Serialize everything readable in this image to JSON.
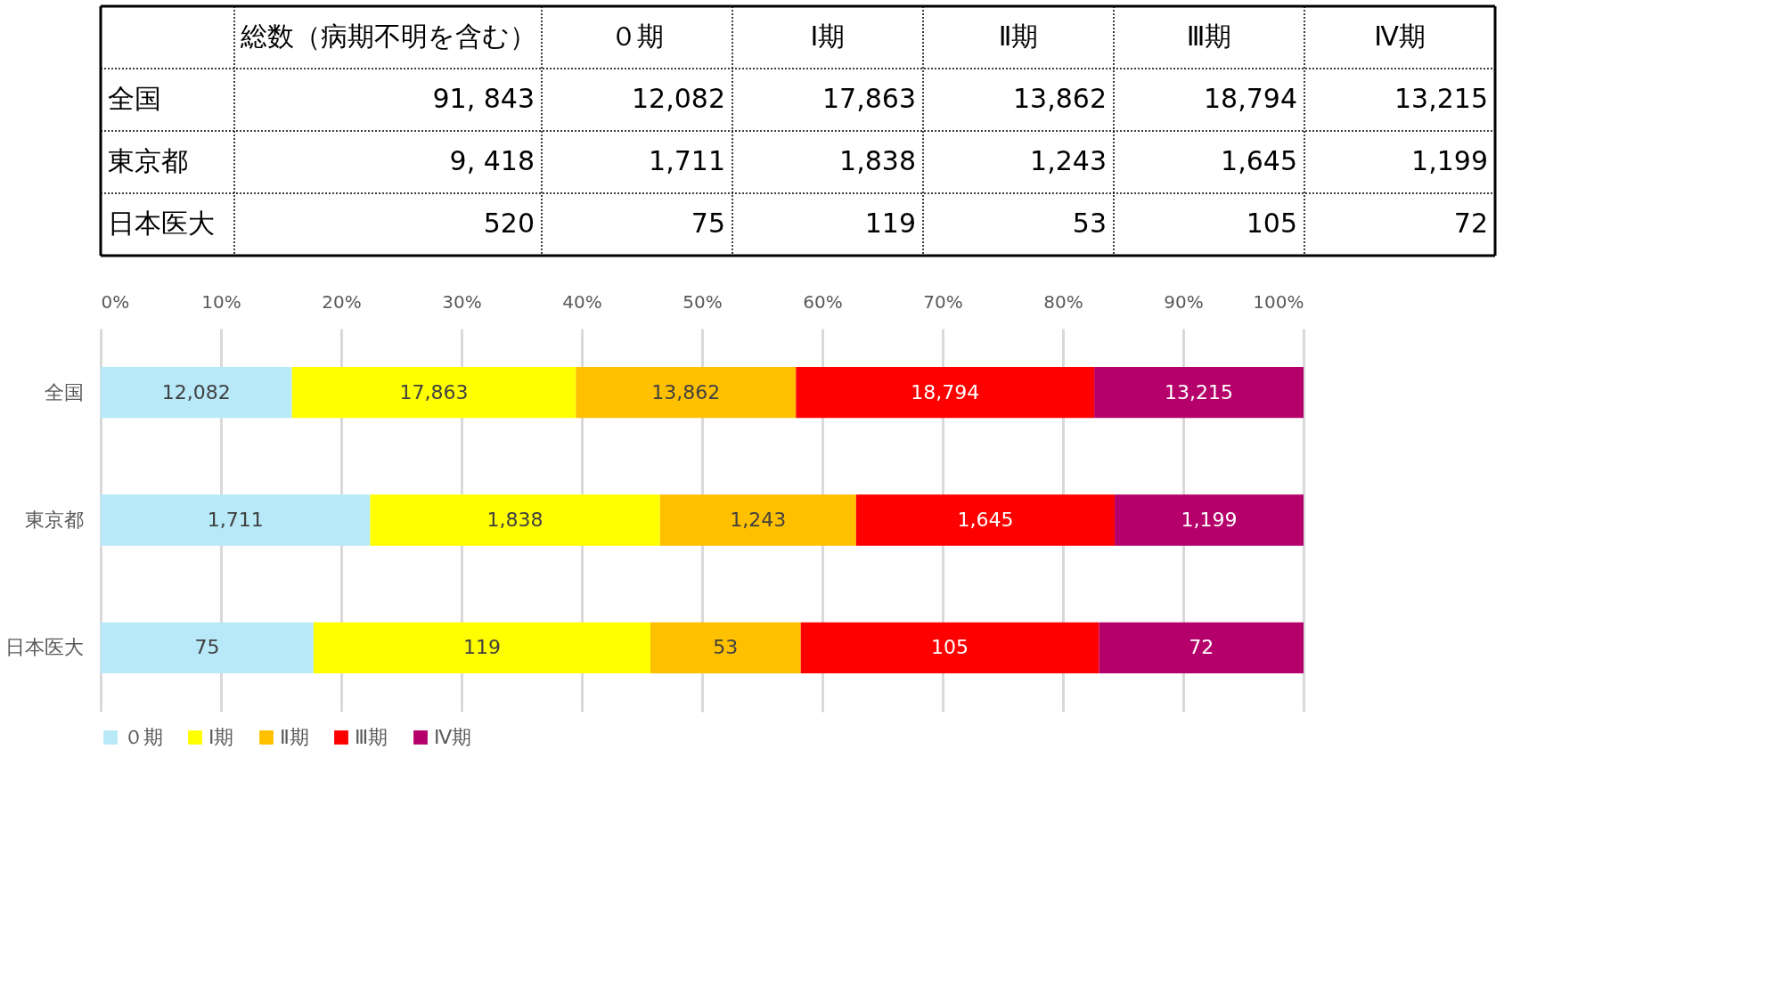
{
  "chart_data": {
    "type": "bar",
    "orientation": "horizontal",
    "stacked": true,
    "categories": [
      "全国",
      "東京都",
      "日本医大"
    ],
    "series": [
      {
        "name": "０期",
        "color": "#b7e9f9",
        "values": [
          15.9,
          22.4,
          17.7
        ]
      },
      {
        "name": "Ⅰ期",
        "color": "#ffff00",
        "values": [
          23.6,
          24.1,
          28.0
        ]
      },
      {
        "name": "Ⅱ期",
        "color": "#ffc000",
        "values": [
          18.3,
          16.3,
          12.5
        ]
      },
      {
        "name": "Ⅲ期",
        "color": "#ff0000",
        "values": [
          24.8,
          21.5,
          24.8
        ]
      },
      {
        "name": "Ⅳ期",
        "color": "#b5006b",
        "values": [
          17.4,
          15.7,
          17.0
        ]
      }
    ],
    "annotations": [
      "総数（病期不明を含む）",
      "91, 843",
      "9, 418",
      "520",
      "12,082",
      "1,711",
      "75",
      "17,863",
      "1,838",
      "119",
      "13,862",
      "1,243",
      "53",
      "18,794",
      "1,645",
      "105",
      "13,215",
      "1,199",
      "72"
    ],
    "xlim": [
      0,
      100
    ],
    "xticks": [
      {
        "value": 0,
        "label": "0%"
      },
      {
        "value": 10,
        "label": "10%"
      },
      {
        "value": 20,
        "label": "20%"
      },
      {
        "value": 30,
        "label": "30%"
      },
      {
        "value": 40,
        "label": "40%"
      },
      {
        "value": 50,
        "label": "50%"
      },
      {
        "value": 60,
        "label": "60%"
      },
      {
        "value": 70,
        "label": "70%"
      },
      {
        "value": 80,
        "label": "80%"
      },
      {
        "value": 90,
        "label": "90%"
      },
      {
        "value": 100,
        "label": "100%"
      }
    ],
    "grid": "x",
    "legend": "bottom"
  }
}
